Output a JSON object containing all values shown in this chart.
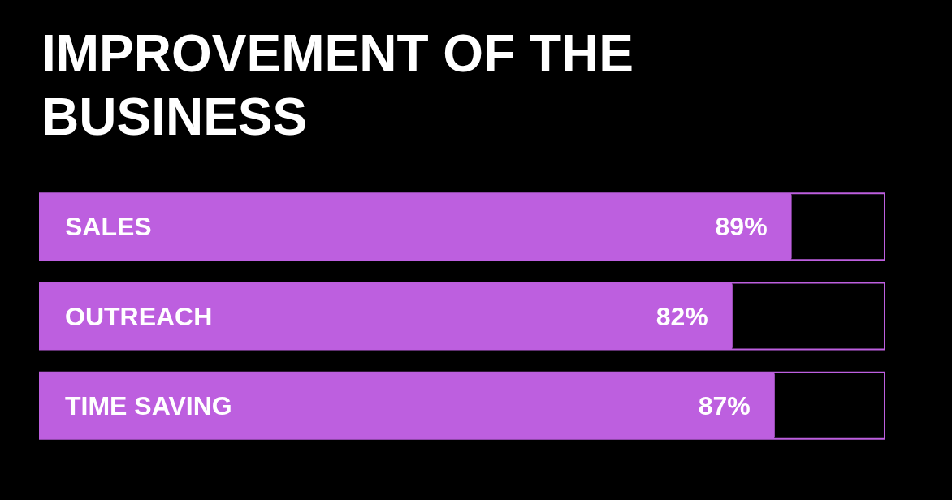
{
  "chart_data": {
    "type": "bar",
    "title": "IMPROVEMENT OF THE BUSINESS",
    "orientation": "horizontal",
    "categories": [
      "SALES",
      "OUTREACH",
      "TIME SAVING"
    ],
    "values": [
      89,
      82,
      87
    ],
    "value_labels": [
      "89%",
      "82%",
      "87%"
    ],
    "color": "#bd5fdf",
    "xlim": [
      0,
      100
    ],
    "tick_labels": "y",
    "grid": false
  }
}
